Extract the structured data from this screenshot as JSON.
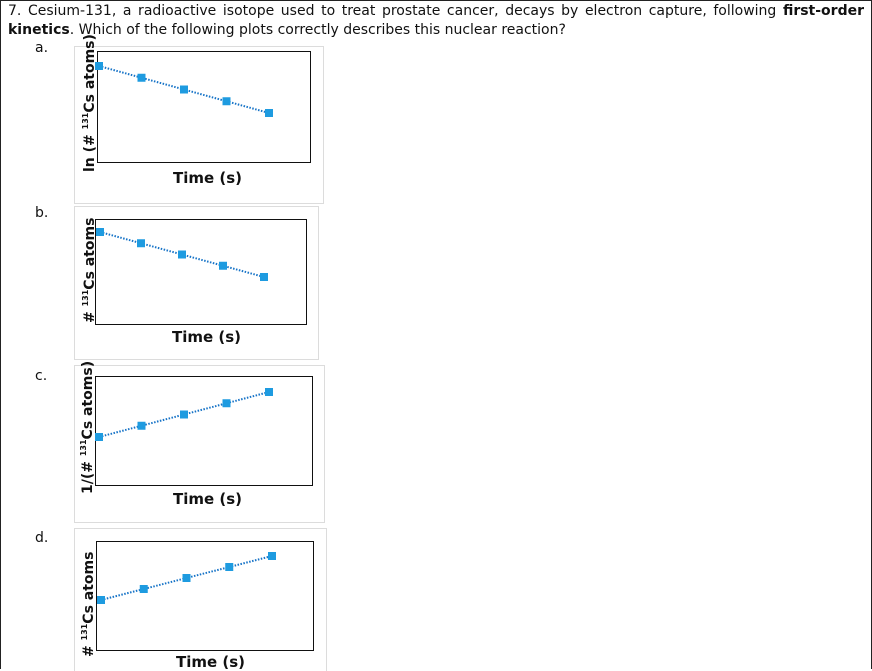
{
  "question": {
    "prefix": "7. Cesium-131, a radioactive isotope used to treat prostate cancer, decays by electron capture, following ",
    "bold": "first-order kinetics",
    "suffix": ". Which of the following plots correctly describes this nuclear reaction?"
  },
  "marker_color": "#1e9be0",
  "line_color": "#1673c7",
  "options": [
    {
      "letter": "a.",
      "ylabel_pre": "ln (# ",
      "ylabel_sup": "131",
      "ylabel_post": "Cs atoms)",
      "xlabel": "Time (s)",
      "trend": "decreasing"
    },
    {
      "letter": "b.",
      "ylabel_pre": "# ",
      "ylabel_sup": "131",
      "ylabel_post": "Cs atoms",
      "xlabel": "Time (s)",
      "trend": "decreasing"
    },
    {
      "letter": "c.",
      "ylabel_pre": "1/(# ",
      "ylabel_sup": "131",
      "ylabel_post": "Cs atoms)",
      "xlabel": "Time (s)",
      "trend": "increasing"
    },
    {
      "letter": "d.",
      "ylabel_pre": "# ",
      "ylabel_sup": "131",
      "ylabel_post": "Cs atoms",
      "xlabel": "Time (s)",
      "trend": "increasing"
    }
  ]
}
